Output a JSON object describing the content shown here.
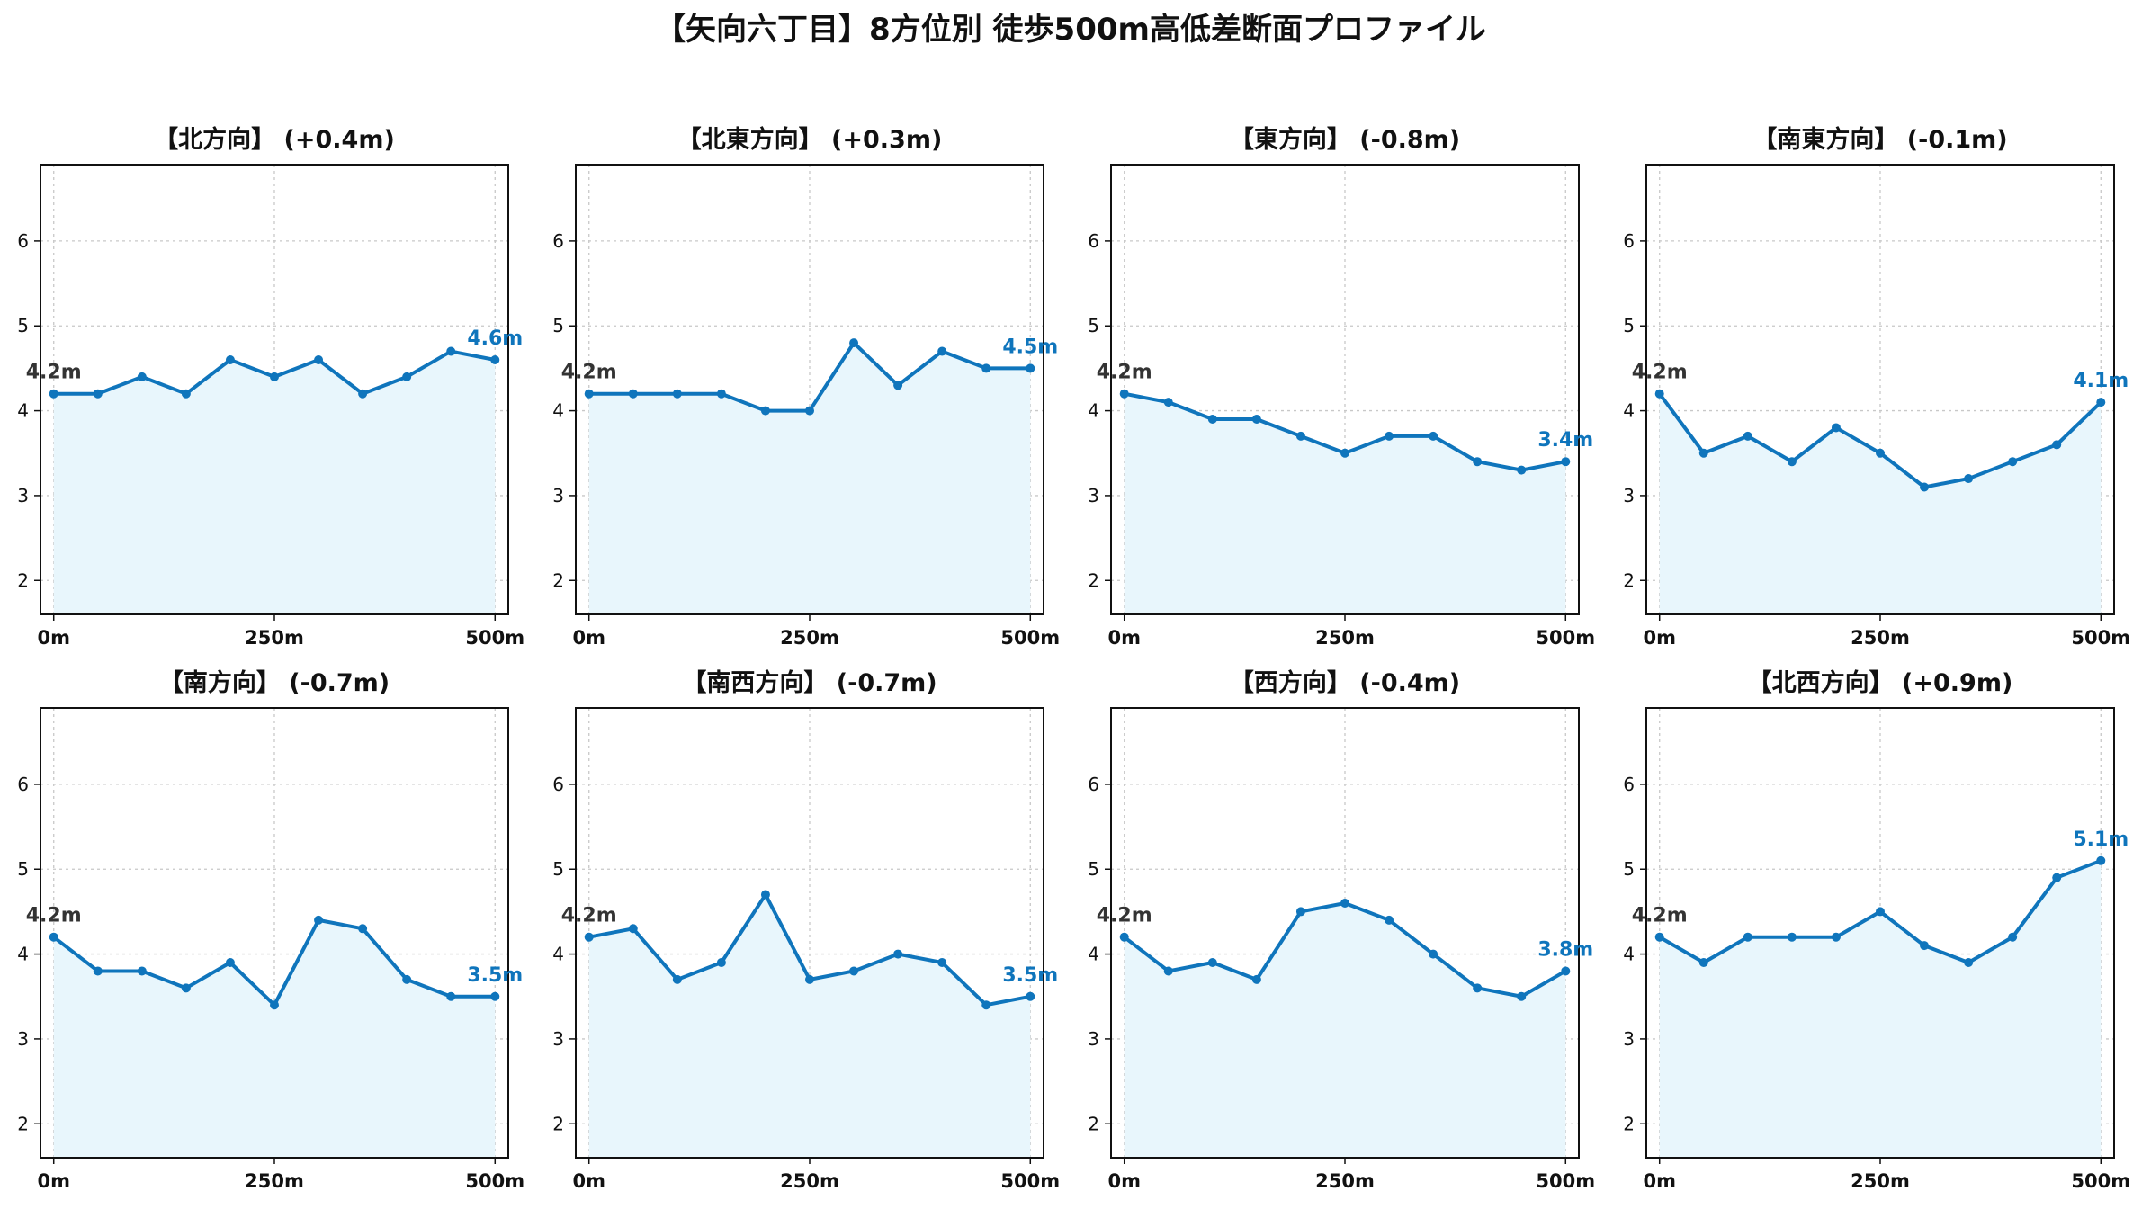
{
  "suptitle": "【矢向六丁目】8方位別 徒歩500m高低差断面プロファイル",
  "chart_data": [
    {
      "type": "line",
      "title": "【北方向】 (+0.4m)",
      "x": [
        0,
        50,
        100,
        150,
        200,
        250,
        300,
        350,
        400,
        450,
        500
      ],
      "values": [
        4.2,
        4.2,
        4.4,
        4.2,
        4.6,
        4.4,
        4.6,
        4.2,
        4.4,
        4.7,
        4.6
      ],
      "start_label": "4.2m",
      "end_label": "4.6m"
    },
    {
      "type": "line",
      "title": "【北東方向】 (+0.3m)",
      "x": [
        0,
        50,
        100,
        150,
        200,
        250,
        300,
        350,
        400,
        450,
        500
      ],
      "values": [
        4.2,
        4.2,
        4.2,
        4.2,
        4.0,
        4.0,
        4.8,
        4.3,
        4.7,
        4.5,
        4.5
      ],
      "start_label": "4.2m",
      "end_label": "4.5m"
    },
    {
      "type": "line",
      "title": "【東方向】 (-0.8m)",
      "x": [
        0,
        50,
        100,
        150,
        200,
        250,
        300,
        350,
        400,
        450,
        500
      ],
      "values": [
        4.2,
        4.1,
        3.9,
        3.9,
        3.7,
        3.5,
        3.7,
        3.7,
        3.4,
        3.3,
        3.4
      ],
      "start_label": "4.2m",
      "end_label": "3.4m"
    },
    {
      "type": "line",
      "title": "【南東方向】 (-0.1m)",
      "x": [
        0,
        50,
        100,
        150,
        200,
        250,
        300,
        350,
        400,
        450,
        500
      ],
      "values": [
        4.2,
        3.5,
        3.7,
        3.4,
        3.8,
        3.5,
        3.1,
        3.2,
        3.4,
        3.6,
        4.1
      ],
      "start_label": "4.2m",
      "end_label": "4.1m"
    },
    {
      "type": "line",
      "title": "【南方向】 (-0.7m)",
      "x": [
        0,
        50,
        100,
        150,
        200,
        250,
        300,
        350,
        400,
        450,
        500
      ],
      "values": [
        4.2,
        3.8,
        3.8,
        3.6,
        3.9,
        3.4,
        4.4,
        4.3,
        3.7,
        3.5,
        3.5
      ],
      "start_label": "4.2m",
      "end_label": "3.5m"
    },
    {
      "type": "line",
      "title": "【南西方向】 (-0.7m)",
      "x": [
        0,
        50,
        100,
        150,
        200,
        250,
        300,
        350,
        400,
        450,
        500
      ],
      "values": [
        4.2,
        4.3,
        3.7,
        3.9,
        4.7,
        3.7,
        3.8,
        4.0,
        3.9,
        3.4,
        3.5
      ],
      "start_label": "4.2m",
      "end_label": "3.5m"
    },
    {
      "type": "line",
      "title": "【西方向】 (-0.4m)",
      "x": [
        0,
        50,
        100,
        150,
        200,
        250,
        300,
        350,
        400,
        450,
        500
      ],
      "values": [
        4.2,
        3.8,
        3.9,
        3.7,
        4.5,
        4.6,
        4.4,
        4.0,
        3.6,
        3.5,
        3.8
      ],
      "start_label": "4.2m",
      "end_label": "3.8m"
    },
    {
      "type": "line",
      "title": "【北西方向】 (+0.9m)",
      "x": [
        0,
        50,
        100,
        150,
        200,
        250,
        300,
        350,
        400,
        450,
        500
      ],
      "values": [
        4.2,
        3.9,
        4.2,
        4.2,
        4.2,
        4.5,
        4.1,
        3.9,
        4.2,
        4.9,
        5.1
      ],
      "start_label": "4.2m",
      "end_label": "5.1m"
    }
  ],
  "axes": {
    "xlim": [
      -15,
      515
    ],
    "ylim": [
      1.6,
      6.9
    ],
    "x_ticks": [
      0,
      250,
      500
    ],
    "x_tick_labels": [
      "0m",
      "250m",
      "500m"
    ],
    "y_ticks": [
      2,
      3,
      4,
      5,
      6
    ],
    "y_tick_labels": [
      "2",
      "3",
      "4",
      "5",
      "6"
    ],
    "grid": true
  },
  "colors": {
    "line": "#0f75bc",
    "fill": "#e8f6fc",
    "start_label": "#333333",
    "end_label": "#0f75bc",
    "grid": "#c8c8c8"
  }
}
